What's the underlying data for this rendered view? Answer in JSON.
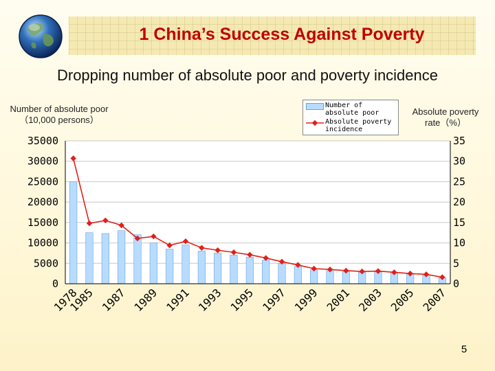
{
  "header": {
    "title": "1 China’s Success Against Poverty"
  },
  "page_number": "5",
  "colors": {
    "title": "#c00000",
    "bar_fill": "#b8dcff",
    "bar_stroke": "#6aa0d8",
    "line": "#e0201a",
    "banner": "#f5e9b3"
  },
  "chart_data": {
    "type": "bar",
    "title": "Dropping number of absolute poor and poverty incidence",
    "ylabel_left": "Number of absolute poor （10,000 persons）",
    "ylabel_right": "Absolute poverty rate（%）",
    "legend_placement": "top-right",
    "grid": true,
    "ylim_left": [
      0,
      35000
    ],
    "ylim_right": [
      0,
      35
    ],
    "yticks_left": [
      "0",
      "5000",
      "10000",
      "15000",
      "20000",
      "25000",
      "30000",
      "35000"
    ],
    "yticks_right": [
      "0",
      "5",
      "10",
      "15",
      "20",
      "25",
      "30",
      "35"
    ],
    "categories": [
      "1978",
      "1985",
      "1986",
      "1987",
      "1988",
      "1989",
      "1990",
      "1991",
      "1992",
      "1993",
      "1994",
      "1995",
      "1996",
      "1997",
      "1998",
      "1999",
      "2000",
      "2001",
      "2002",
      "2003",
      "2004",
      "2005",
      "2006",
      "2007"
    ],
    "xtick_labels": [
      "1978",
      "1985",
      "1987",
      "1989",
      "1991",
      "1993",
      "1995",
      "1997",
      "1999",
      "2001",
      "2003",
      "2005",
      "2007"
    ],
    "series": [
      {
        "name": "Number of absolute poor",
        "type": "bar",
        "axis": "left",
        "values": [
          25000,
          12500,
          12300,
          13000,
          12000,
          10000,
          8500,
          9500,
          8000,
          7500,
          7000,
          6500,
          5800,
          5000,
          4200,
          3400,
          3200,
          3000,
          2800,
          2900,
          2600,
          2400,
          2100,
          1500
        ]
      },
      {
        "name": "Absolute poverty incidence",
        "type": "line",
        "axis": "right",
        "values": [
          30.7,
          14.8,
          15.5,
          14.3,
          11.1,
          11.6,
          9.4,
          10.4,
          8.8,
          8.2,
          7.7,
          7.1,
          6.3,
          5.4,
          4.6,
          3.7,
          3.5,
          3.2,
          3.0,
          3.1,
          2.8,
          2.5,
          2.3,
          1.6
        ]
      }
    ]
  }
}
